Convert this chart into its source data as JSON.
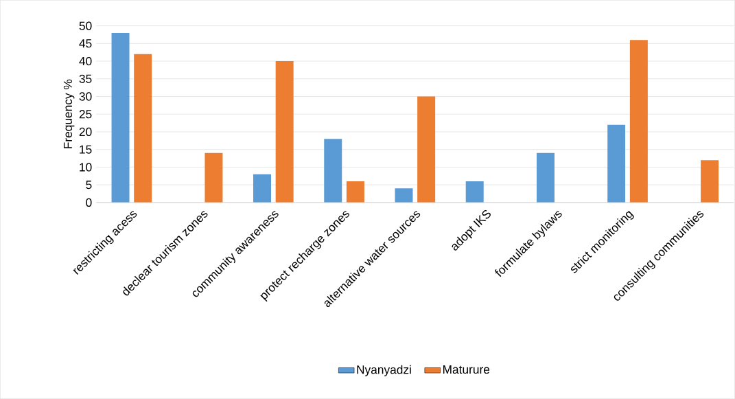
{
  "chart_data": {
    "type": "bar",
    "ylabel": "Frequency %",
    "categories": [
      "restricting acess",
      "declear tourism zones",
      "community awareness",
      "protect recharge zones",
      "alternative water sources",
      "adopt IKS",
      "formulate bylaws",
      "strict monitoring",
      "consulting communities"
    ],
    "series": [
      {
        "name": "Nyanyadzi",
        "color": "#5b9bd5",
        "values": [
          48,
          null,
          8,
          18,
          4,
          6,
          14,
          22,
          null
        ]
      },
      {
        "name": "Maturure",
        "color": "#ed7d31",
        "values": [
          42,
          14,
          40,
          6,
          30,
          null,
          null,
          46,
          12
        ]
      }
    ],
    "ylim": [
      0,
      50
    ],
    "yticks": [
      0,
      5,
      10,
      15,
      20,
      25,
      30,
      35,
      40,
      45,
      50
    ],
    "grid": "y",
    "legend": "bottom"
  }
}
